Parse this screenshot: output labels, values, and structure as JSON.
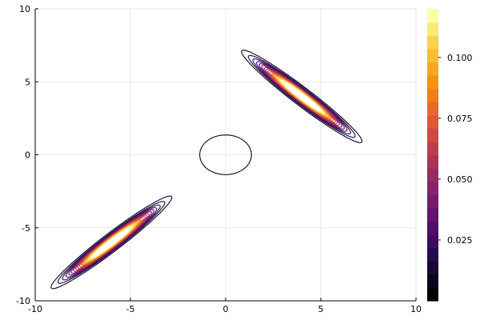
{
  "chart_data": {
    "type": "contour",
    "title": "",
    "xlabel": "",
    "ylabel": "",
    "xlim": [
      -10,
      10
    ],
    "ylim": [
      -10,
      10
    ],
    "x_ticks": [
      -10,
      -5,
      0,
      5,
      10
    ],
    "y_ticks": [
      -10,
      -5,
      0,
      5,
      10
    ],
    "x_tick_labels": [
      "-10",
      "-5",
      "0",
      "5",
      "10"
    ],
    "y_tick_labels": [
      "-10",
      "-5",
      "0",
      "5",
      "10"
    ],
    "grid": true,
    "colorbar": {
      "min": 0.0,
      "max": 0.12,
      "ticks": [
        0.025,
        0.05,
        0.075,
        0.1
      ],
      "tick_labels": [
        "0.025",
        "0.050",
        "0.075",
        "0.100"
      ],
      "colormap": "inferno",
      "levels": 22
    },
    "components": [
      {
        "mean": [
          0,
          0
        ],
        "sx": 1.35,
        "sy": 1.35,
        "rho": 0.0,
        "weight": 0.133
      },
      {
        "mean": [
          4,
          4
        ],
        "sx": 1.25,
        "sy": 1.25,
        "rho": -0.97,
        "weight": 0.42
      },
      {
        "mean": [
          -6,
          -6
        ],
        "sx": 1.25,
        "sy": 1.25,
        "rho": 0.97,
        "weight": 0.42
      }
    ],
    "contour_levels": [
      0.007,
      0.014,
      0.021,
      0.028,
      0.035,
      0.042,
      0.049,
      0.056,
      0.063,
      0.07,
      0.077,
      0.084,
      0.091,
      0.098,
      0.105,
      0.112
    ]
  }
}
